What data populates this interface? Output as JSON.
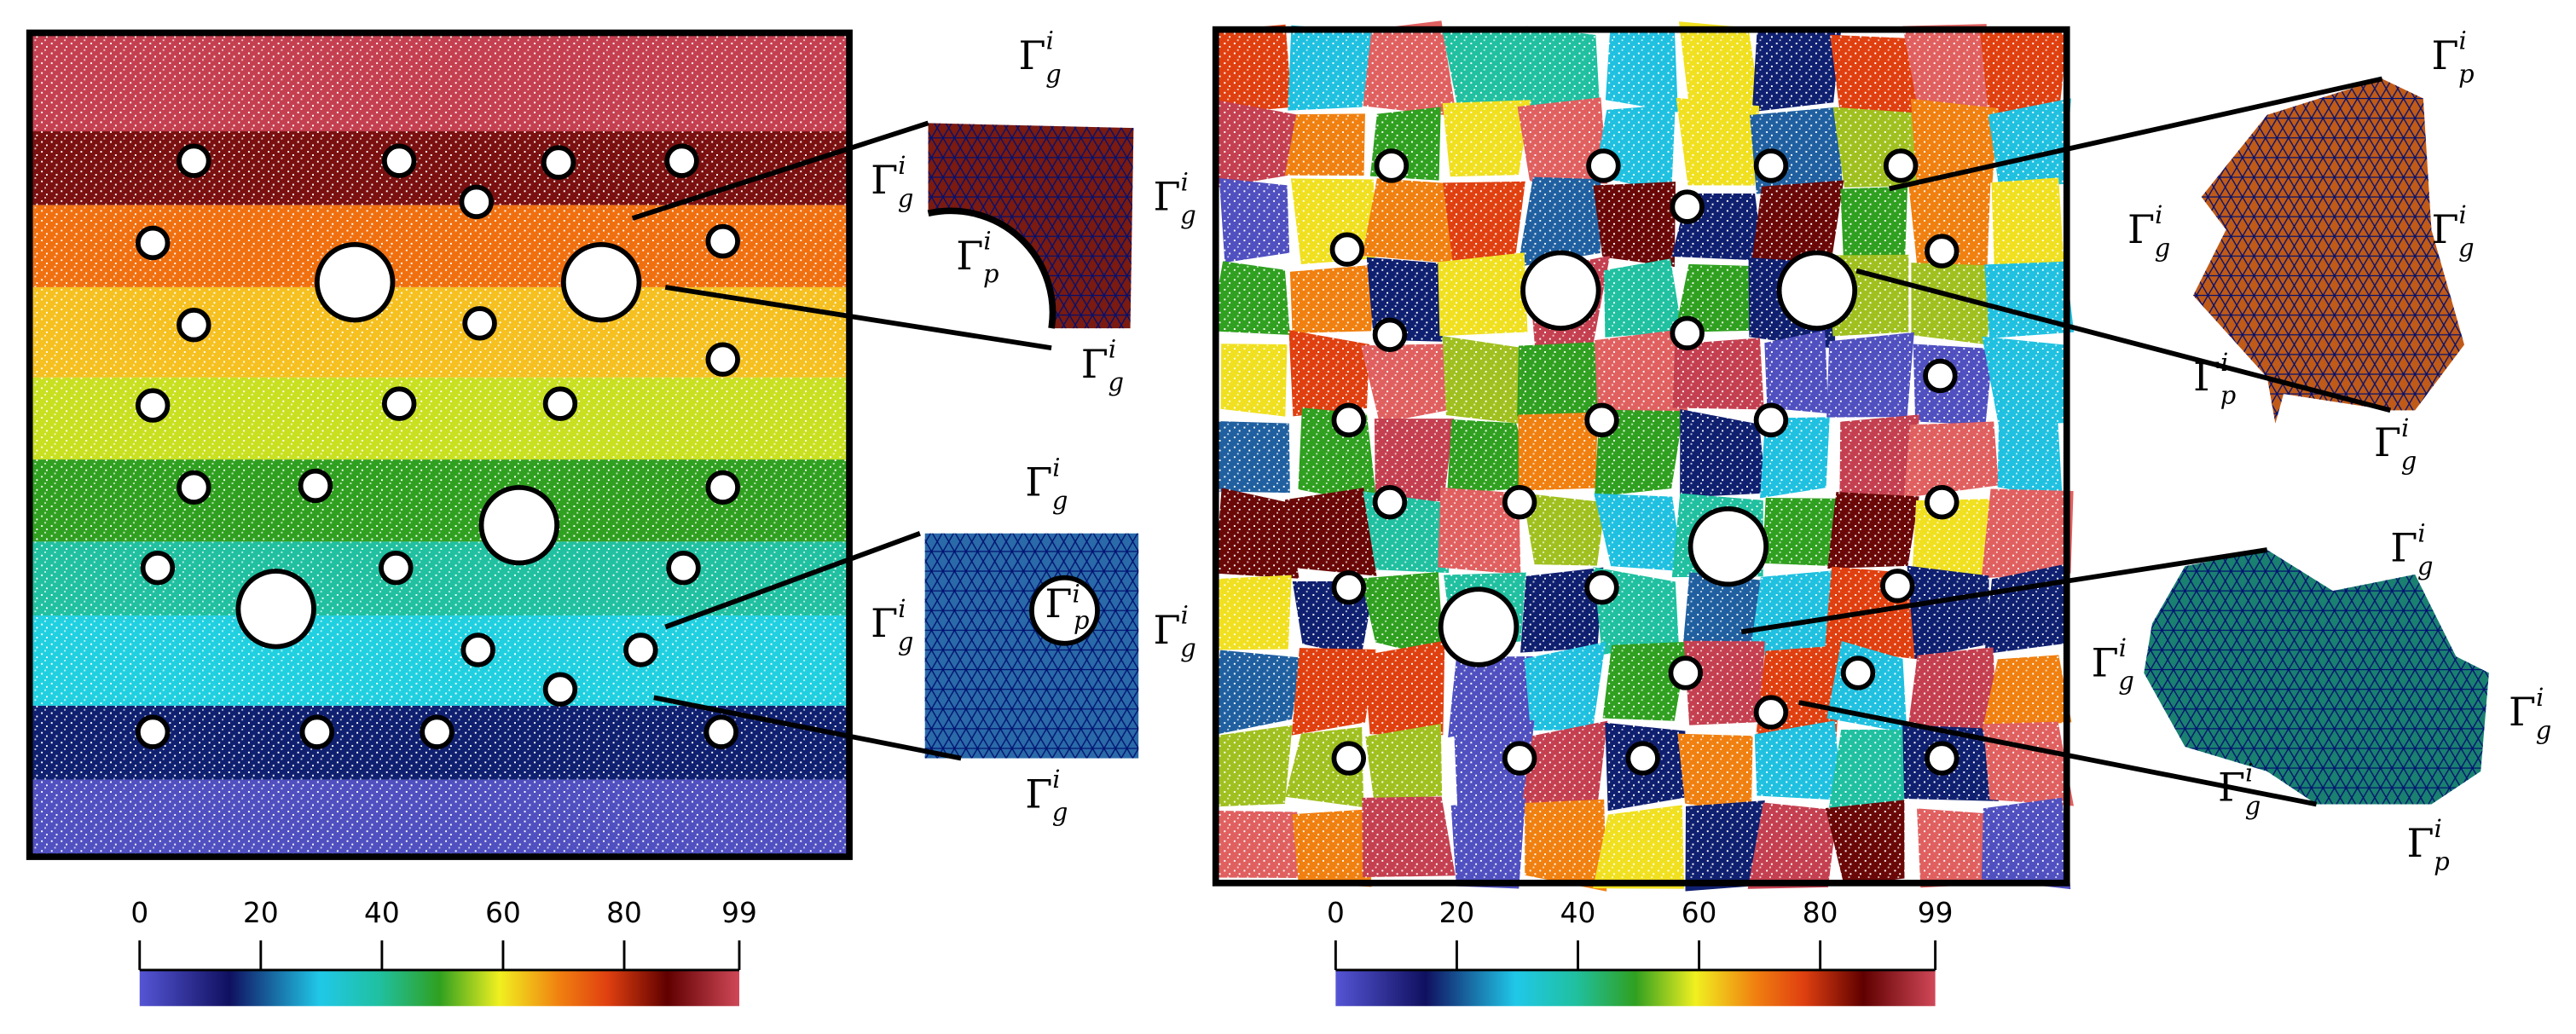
{
  "panels": [
    {
      "colorbar": {
        "ticks": [
          0,
          20,
          40,
          60,
          80,
          99
        ]
      },
      "labels": [
        {
          "base": "Γ",
          "sub": "g",
          "sup": "i"
        },
        {
          "base": "Γ",
          "sub": "g",
          "sup": "i"
        },
        {
          "base": "Γ",
          "sub": "g",
          "sup": "i"
        },
        {
          "base": "Γ",
          "sub": "p",
          "sup": "i"
        },
        {
          "base": "Γ",
          "sub": "g",
          "sup": "i"
        },
        {
          "base": "Γ",
          "sub": "g",
          "sup": "i"
        },
        {
          "base": "Γ",
          "sub": "g",
          "sup": "i"
        },
        {
          "base": "Γ",
          "sub": "p",
          "sup": "i"
        },
        {
          "base": "Γ",
          "sub": "g",
          "sup": "i"
        },
        {
          "base": "Γ",
          "sub": "g",
          "sup": "i"
        }
      ]
    },
    {
      "colorbar": {
        "ticks": [
          0,
          20,
          40,
          60,
          80,
          99
        ]
      },
      "labels": [
        {
          "base": "Γ",
          "sub": "p",
          "sup": "i"
        },
        {
          "base": "Γ",
          "sub": "g",
          "sup": "i"
        },
        {
          "base": "Γ",
          "sub": "g",
          "sup": "i"
        },
        {
          "base": "Γ",
          "sub": "p",
          "sup": "i"
        },
        {
          "base": "Γ",
          "sub": "g",
          "sup": "i"
        },
        {
          "base": "Γ",
          "sub": "g",
          "sup": "i"
        },
        {
          "base": "Γ",
          "sub": "g",
          "sup": "i"
        },
        {
          "base": "Γ",
          "sub": "g",
          "sup": "i"
        },
        {
          "base": "Γ",
          "sub": "g",
          "sup": "i"
        },
        {
          "base": "Γ",
          "sub": "p",
          "sup": "i"
        }
      ]
    }
  ]
}
